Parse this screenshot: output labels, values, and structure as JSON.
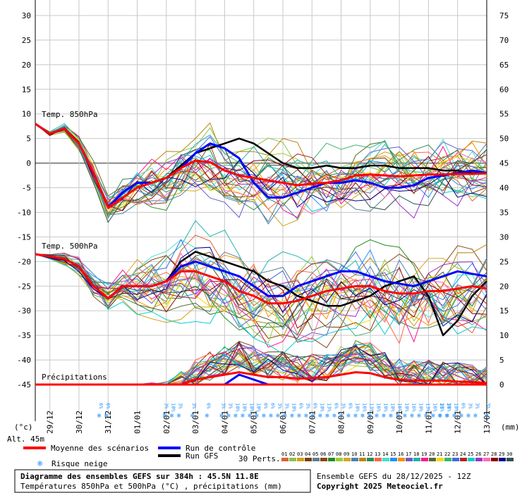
{
  "chart_data": {
    "type": "line",
    "title": "Diagramme des ensembles GEFS sur 384h : 45.5N 11.8E",
    "subtitle": "Températures 850hPa et 500hPa (°C) , précipitations (mm)",
    "run_info": "Ensemble GEFS du 28/12/2025 - 12Z",
    "copyright": "Copyright 2025 Meteociel.fr",
    "altitude": "Alt. 45m",
    "y_left_unit": "(°c)",
    "y_right_unit": "(mm)",
    "ylim": [
      -45,
      30
    ],
    "y_left_ticks": [
      "30",
      "25",
      "20",
      "15",
      "10",
      "5",
      "0",
      "-5",
      "-10",
      "-15",
      "-20",
      "-25",
      "-30",
      "-35",
      "-40",
      "-45"
    ],
    "y_right_ticks": [
      "75",
      "70",
      "65",
      "60",
      "55",
      "50",
      "45",
      "40",
      "35",
      "30",
      "25",
      "20",
      "15",
      "10",
      "5",
      "0"
    ],
    "x_ticks": [
      "29/12",
      "30/12",
      "31/12",
      "01/01",
      "02/01",
      "03/01",
      "04/01",
      "05/01",
      "06/01",
      "07/01",
      "08/01",
      "09/01",
      "10/01",
      "11/01",
      "12/01",
      "13/01"
    ],
    "panel_labels": {
      "t850": "Temp. 850hPa",
      "t500": "Temp. 500hPa",
      "precip": "Précipitations"
    },
    "legend": {
      "mean": "Moyenne des scénarios",
      "control": "Run de contrôle",
      "gfs": "Run GFS",
      "snow": "Risque neige",
      "perts": "30 Perts.",
      "pert_labels": [
        "01",
        "02",
        "03",
        "04",
        "05",
        "06",
        "07",
        "08",
        "09",
        "10",
        "11",
        "12",
        "13",
        "14",
        "15",
        "16",
        "17",
        "18",
        "19",
        "20",
        "21",
        "22",
        "23",
        "24",
        "25",
        "26",
        "27",
        "28",
        "29",
        "30"
      ],
      "pert_colors": [
        "#e06030",
        "#8bc34a",
        "#d4a017",
        "#7b3f00",
        "#607d8b",
        "#8b4513",
        "#228b22",
        "#9acd32",
        "#daa520",
        "#4682b4",
        "#b8860b",
        "#2e8b57",
        "#ff6347",
        "#40e0d0",
        "#1e90ff",
        "#ff8c00",
        "#6a5acd",
        "#20b2aa",
        "#ff1493",
        "#556b2f",
        "#ffd700",
        "#3cb371",
        "#4169e1",
        "#b22222",
        "#00ced1",
        "#9932cc",
        "#ff69b4",
        "#8b0000",
        "#00008b",
        "#2f4f4f"
      ]
    },
    "snow_label": "3%",
    "snow_risk": [
      {
        "x": 2.2,
        "labels": [
          "6%",
          "6%"
        ]
      },
      {
        "x": 4.45,
        "labels": [
          "3%",
          "10%",
          "3%"
        ]
      },
      {
        "x": 5.4,
        "labels": [
          "3%"
        ]
      },
      {
        "x": 5.9,
        "labels": [
          "6%"
        ]
      },
      {
        "x": 6.4,
        "labels": [
          "3%",
          "3%",
          "10%",
          "10%",
          "10%",
          "10%",
          "6%",
          "6%",
          "3%",
          "3%",
          "10%",
          "6%",
          "3%",
          "6%",
          "10%",
          "13%",
          "6%",
          "3%",
          "6%",
          "10%",
          "16%",
          "13%",
          "16%",
          "10%",
          "10%",
          "16%",
          "10%",
          "16%",
          "10%",
          "13%",
          "16%",
          "13%",
          "10%",
          "10%",
          "6%",
          "3%",
          "3%"
        ]
      },
      {
        "x": 13.9,
        "labels": [
          "3%",
          "3%"
        ]
      },
      {
        "x": 15.5,
        "labels": [
          "3%",
          "3%"
        ]
      }
    ],
    "series": [
      {
        "name": "Moyenne des scénarios",
        "x": [
          0,
          0.5,
          1,
          1.5,
          2,
          2.5,
          3,
          3.5,
          4,
          4.5,
          5,
          5.5,
          6,
          6.5,
          7,
          7.5,
          8,
          8.5,
          9,
          9.5,
          10,
          10.5,
          11,
          11.5,
          12,
          12.5,
          13,
          13.5,
          14,
          14.5,
          15,
          15.5
        ],
        "t850": [
          8,
          6,
          7,
          4,
          -2,
          -9,
          -7,
          -5,
          -4,
          -3,
          -1,
          0.5,
          0.2,
          -1.5,
          -2.5,
          -3,
          -3.5,
          -4,
          -4.5,
          -4.2,
          -4,
          -3.5,
          -2.5,
          -2.3,
          -2.5,
          -2.7,
          -2.5,
          -2.3,
          -2.3,
          -2.2,
          -2.2,
          -2.1
        ],
        "t500": [
          -18.5,
          -19,
          -19.5,
          -21,
          -25,
          -27.5,
          -25,
          -25,
          -25,
          -24,
          -22,
          -22,
          -23,
          -24,
          -26,
          -27,
          -28.5,
          -28.5,
          -28,
          -27,
          -26,
          -25.5,
          -25,
          -25,
          -26,
          -26.5,
          -26.5,
          -26,
          -26,
          -25.5,
          -25,
          -25.5
        ],
        "precip": [
          0,
          0,
          0,
          0,
          0,
          0,
          0,
          0,
          0,
          0,
          0,
          1,
          1.5,
          2,
          2.5,
          2,
          1.5,
          1.5,
          1.2,
          1.3,
          1.5,
          2,
          2.5,
          2.3,
          1.5,
          1,
          0.8,
          0.8,
          0.8,
          0.6,
          0.5,
          0.3
        ]
      },
      {
        "name": "Run de contrôle",
        "x": [
          0,
          0.5,
          1,
          1.5,
          2,
          2.5,
          3,
          3.5,
          4,
          4.5,
          5,
          5.5,
          6,
          6.5,
          7,
          7.5,
          8,
          8.5,
          9,
          9.5,
          10,
          10.5,
          11,
          11.5,
          12,
          12.5,
          13,
          13.5,
          14,
          14.5,
          15,
          15.5
        ],
        "t850": [
          8,
          6,
          7,
          4,
          -2,
          -9,
          -6,
          -4,
          -4,
          -3,
          -1,
          2,
          4,
          3,
          1,
          -4,
          -7,
          -7,
          -6,
          -5,
          -4,
          -4,
          -3.5,
          -4,
          -5,
          -5,
          -4.5,
          -3,
          -2.5,
          -2,
          -1.5,
          -2
        ],
        "t500": [
          -18.5,
          -19,
          -19.5,
          -21,
          -25,
          -27.5,
          -25,
          -25,
          -25,
          -24,
          -21,
          -20,
          -21,
          -22,
          -23,
          -25,
          -27,
          -27,
          -25,
          -24,
          -23,
          -22,
          -22,
          -23,
          -24,
          -24.5,
          -25,
          -24,
          -23,
          -22,
          -22.5,
          -23
        ],
        "precip": [
          0,
          0,
          0,
          0,
          0,
          0,
          0,
          0,
          0,
          0,
          0,
          0,
          0,
          0,
          2,
          1,
          0,
          0,
          0,
          0,
          0,
          0,
          0,
          0,
          0,
          0,
          0,
          0,
          0,
          0,
          0,
          0
        ]
      },
      {
        "name": "Run GFS",
        "x": [
          0,
          0.5,
          1,
          1.5,
          2,
          2.5,
          3,
          3.5,
          4,
          4.5,
          5,
          5.5,
          6,
          6.5,
          7,
          7.5,
          8,
          8.5,
          9,
          9.5,
          10,
          10.5,
          11,
          11.5,
          12,
          12.5,
          13,
          13.5,
          14,
          14.5,
          15,
          15.5
        ],
        "t850": [
          8,
          6,
          7,
          4,
          -2,
          -9,
          -7,
          -5,
          -4,
          -3,
          -0.5,
          2,
          3,
          4,
          5,
          4,
          2,
          0,
          -1,
          -1,
          -0.5,
          -1,
          -1,
          -0.5,
          -0.5,
          -1,
          -1,
          -1,
          -1.5,
          -1.5,
          -2,
          -2
        ],
        "t500": [
          -18.5,
          -19,
          -19.5,
          -21,
          -25,
          -27.5,
          -25,
          -25,
          -25,
          -24,
          -20,
          -18,
          -19,
          -20,
          -21,
          -22,
          -24,
          -25,
          -27,
          -28,
          -29,
          -29,
          -28,
          -27,
          -25,
          -24,
          -23,
          -27,
          -35,
          -32,
          -27,
          -24
        ],
        "precip": [
          0,
          0,
          0,
          0,
          0,
          0,
          0,
          0,
          0,
          0,
          0,
          0,
          0,
          0,
          0,
          0,
          0,
          0,
          0,
          0,
          0,
          0,
          0,
          0,
          0,
          0,
          0,
          0,
          0,
          0,
          0,
          0
        ]
      }
    ]
  }
}
